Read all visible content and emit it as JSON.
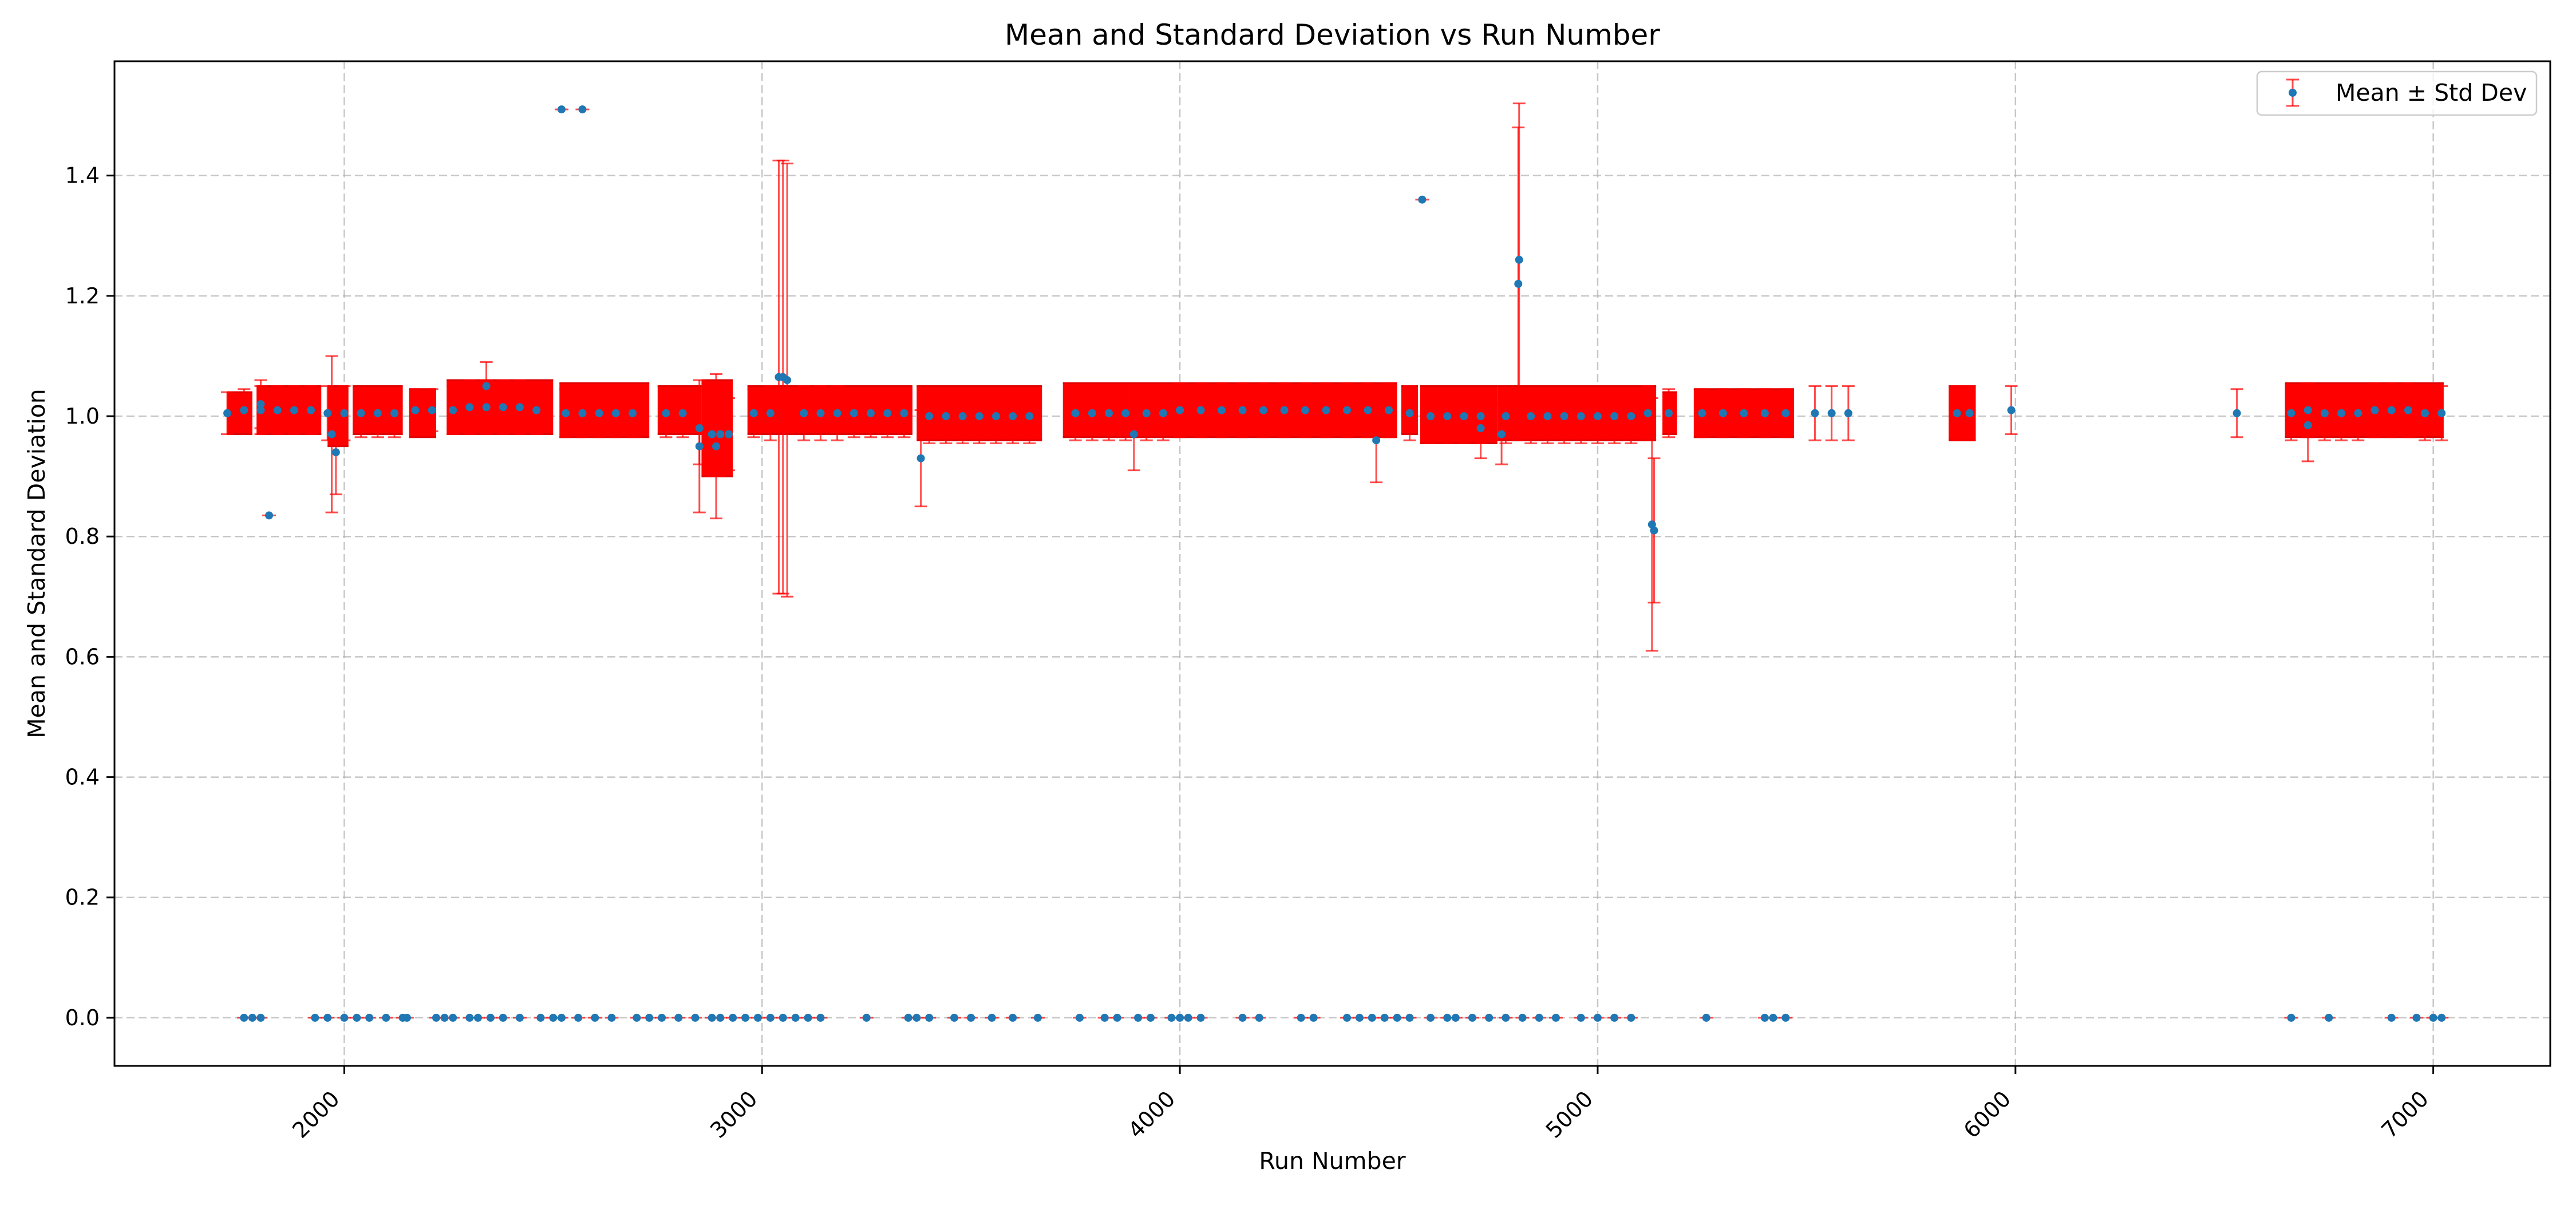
{
  "chart_data": {
    "type": "scatter",
    "title": "Mean and Standard Deviation vs Run Number",
    "xlabel": "Run Number",
    "ylabel": "Mean and Standard Deviation",
    "xlim": [
      1450,
      7280
    ],
    "ylim": [
      -0.08,
      1.59
    ],
    "x_ticks": [
      2000,
      3000,
      4000,
      5000,
      6000,
      7000
    ],
    "y_ticks": [
      0.0,
      0.2,
      0.4,
      0.6,
      0.8,
      1.0,
      1.2,
      1.4
    ],
    "x_tick_labels": [
      "2000",
      "3000",
      "4000",
      "5000",
      "6000",
      "7000"
    ],
    "y_tick_labels": [
      "0.0",
      "0.2",
      "0.4",
      "0.6",
      "0.8",
      "1.0",
      "1.2",
      "1.4"
    ],
    "grid": true,
    "legend": {
      "position": "top-right",
      "entries": [
        "Mean ± Std Dev"
      ]
    },
    "colors": {
      "marker": "#1f77b4",
      "errorbar": "#ff0000"
    },
    "dense_bands": [
      {
        "x_start": 1720,
        "x_end": 1780,
        "y_low": 0.97,
        "y_high": 1.04
      },
      {
        "x_start": 1790,
        "x_end": 1945,
        "y_low": 0.97,
        "y_high": 1.05
      },
      {
        "x_start": 1960,
        "x_end": 2010,
        "y_low": 0.95,
        "y_high": 1.05
      },
      {
        "x_start": 2020,
        "x_end": 2140,
        "y_low": 0.97,
        "y_high": 1.05
      },
      {
        "x_start": 2155,
        "x_end": 2220,
        "y_low": 0.965,
        "y_high": 1.045
      },
      {
        "x_start": 2245,
        "x_end": 2500,
        "y_low": 0.97,
        "y_high": 1.06
      },
      {
        "x_start": 2515,
        "x_end": 2730,
        "y_low": 0.965,
        "y_high": 1.055
      },
      {
        "x_start": 2750,
        "x_end": 2855,
        "y_low": 0.97,
        "y_high": 1.05
      },
      {
        "x_start": 2855,
        "x_end": 2930,
        "y_low": 0.9,
        "y_high": 1.06
      },
      {
        "x_start": 2965,
        "x_end": 3360,
        "y_low": 0.97,
        "y_high": 1.05
      },
      {
        "x_start": 3370,
        "x_end": 3670,
        "y_low": 0.96,
        "y_high": 1.05
      },
      {
        "x_start": 3720,
        "x_end": 3880,
        "y_low": 0.965,
        "y_high": 1.055
      },
      {
        "x_start": 3880,
        "x_end": 4520,
        "y_low": 0.965,
        "y_high": 1.055
      },
      {
        "x_start": 4530,
        "x_end": 4570,
        "y_low": 0.97,
        "y_high": 1.05
      },
      {
        "x_start": 4575,
        "x_end": 4760,
        "y_low": 0.955,
        "y_high": 1.05
      },
      {
        "x_start": 4760,
        "x_end": 5140,
        "y_low": 0.96,
        "y_high": 1.05
      },
      {
        "x_start": 5155,
        "x_end": 5190,
        "y_low": 0.97,
        "y_high": 1.04
      },
      {
        "x_start": 5230,
        "x_end": 5470,
        "y_low": 0.965,
        "y_high": 1.045
      },
      {
        "x_start": 5840,
        "x_end": 5905,
        "y_low": 0.96,
        "y_high": 1.05
      },
      {
        "x_start": 6645,
        "x_end": 7025,
        "y_low": 0.965,
        "y_high": 1.055
      }
    ],
    "series": [
      {
        "name": "Mean ± Std Dev",
        "x": [
          1720,
          1760,
          1800,
          1840,
          1880,
          1920,
          1960,
          2000,
          2040,
          2080,
          2120,
          2170,
          2210,
          2260,
          2300,
          2340,
          2380,
          2420,
          2460,
          2530,
          2570,
          2610,
          2650,
          2690,
          2770,
          2810,
          2850,
          2880,
          2900,
          2920,
          2980,
          3020,
          3060,
          3100,
          3140,
          3180,
          3220,
          3260,
          3300,
          3340,
          3400,
          3440,
          3480,
          3520,
          3560,
          3600,
          3640,
          3750,
          3790,
          3830,
          3870,
          3920,
          3960,
          4000,
          4050,
          4100,
          4150,
          4200,
          4250,
          4300,
          4350,
          4400,
          4450,
          4500,
          4550,
          4600,
          4640,
          4680,
          4720,
          4780,
          4840,
          4880,
          4920,
          4960,
          5000,
          5040,
          5080,
          5120,
          5170,
          5250,
          5300,
          5350,
          5400,
          5450,
          5860,
          5890,
          6660,
          6700,
          6740,
          6780,
          6820,
          6860,
          6900,
          6940,
          6980,
          7020,
          1800,
          1970,
          1980,
          2340,
          2850,
          2890,
          3040,
          3050,
          3380,
          3890,
          4470,
          4810,
          4812,
          5130,
          5135,
          5520,
          5560,
          5600,
          5990,
          6530,
          6700,
          4720,
          4770,
          2520,
          2570,
          4580,
          1820,
          1760,
          1780,
          1800,
          1930,
          1960,
          2000,
          2030,
          2060,
          2100,
          2140,
          2150,
          2220,
          2240,
          2260,
          2300,
          2320,
          2350,
          2380,
          2420,
          2470,
          2500,
          2520,
          2560,
          2600,
          2640,
          2700,
          2730,
          2760,
          2800,
          2840,
          2880,
          2900,
          2930,
          2960,
          2990,
          3020,
          3050,
          3080,
          3110,
          3140,
          3250,
          3350,
          3370,
          3400,
          3460,
          3500,
          3550,
          3600,
          3660,
          3760,
          3820,
          3850,
          3900,
          3930,
          3980,
          4000,
          4020,
          4050,
          4150,
          4190,
          4290,
          4320,
          4400,
          4430,
          4460,
          4490,
          4520,
          4550,
          4600,
          4640,
          4660,
          4700,
          4740,
          4780,
          4820,
          4860,
          4900,
          4960,
          5000,
          5040,
          5080,
          5260,
          5400,
          5420,
          5450,
          6660,
          6750,
          6900,
          6960,
          7000,
          7020
        ],
        "y": [
          1.005,
          1.01,
          1.01,
          1.01,
          1.01,
          1.01,
          1.005,
          1.005,
          1.005,
          1.005,
          1.005,
          1.01,
          1.01,
          1.01,
          1.015,
          1.015,
          1.015,
          1.015,
          1.01,
          1.005,
          1.005,
          1.005,
          1.005,
          1.005,
          1.005,
          1.005,
          0.98,
          0.97,
          0.97,
          0.97,
          1.005,
          1.005,
          1.06,
          1.005,
          1.005,
          1.005,
          1.005,
          1.005,
          1.005,
          1.005,
          1.0,
          1.0,
          1.0,
          1.0,
          1.0,
          1.0,
          1.0,
          1.005,
          1.005,
          1.005,
          1.005,
          1.005,
          1.005,
          1.01,
          1.01,
          1.01,
          1.01,
          1.01,
          1.01,
          1.01,
          1.01,
          1.01,
          1.01,
          1.01,
          1.005,
          1.0,
          1.0,
          1.0,
          1.0,
          1.0,
          1.0,
          1.0,
          1.0,
          1.0,
          1.0,
          1.0,
          1.0,
          1.005,
          1.005,
          1.005,
          1.005,
          1.005,
          1.005,
          1.005,
          1.005,
          1.005,
          1.005,
          1.01,
          1.005,
          1.005,
          1.005,
          1.01,
          1.01,
          1.01,
          1.005,
          1.005,
          1.02,
          0.97,
          0.94,
          1.05,
          0.95,
          0.95,
          1.065,
          1.065,
          0.93,
          0.97,
          0.96,
          1.22,
          1.26,
          0.82,
          0.81,
          1.005,
          1.005,
          1.005,
          1.01,
          1.005,
          0.985,
          0.98,
          0.97,
          1.51,
          1.51,
          1.36,
          0.835,
          0.0,
          0.0,
          0.0,
          0.0,
          0.0,
          0.0,
          0.0,
          0.0,
          0.0,
          0.0,
          0.0,
          0.0,
          0.0,
          0.0,
          0.0,
          0.0,
          0.0,
          0.0,
          0.0,
          0.0,
          0.0,
          0.0,
          0.0,
          0.0,
          0.0,
          0.0,
          0.0,
          0.0,
          0.0,
          0.0,
          0.0,
          0.0,
          0.0,
          0.0,
          0.0,
          0.0,
          0.0,
          0.0,
          0.0,
          0.0,
          0.0,
          0.0,
          0.0,
          0.0,
          0.0,
          0.0,
          0.0,
          0.0,
          0.0,
          0.0,
          0.0,
          0.0,
          0.0,
          0.0,
          0.0,
          0.0,
          0.0,
          0.0,
          0.0,
          0.0,
          0.0,
          0.0,
          0.0,
          0.0,
          0.0,
          0.0,
          0.0,
          0.0,
          0.0,
          0.0,
          0.0,
          0.0,
          0.0,
          0.0,
          0.0,
          0.0,
          0.0,
          0.0,
          0.0,
          0.0,
          0.0,
          0.0,
          0.0,
          0.0,
          0.0,
          0.0,
          0.0,
          0.0,
          0.0,
          0.0,
          0.0
        ],
        "yerr": [
          0.035,
          0.035,
          0.04,
          0.04,
          0.04,
          0.04,
          0.045,
          0.045,
          0.04,
          0.04,
          0.04,
          0.035,
          0.035,
          0.04,
          0.045,
          0.045,
          0.045,
          0.045,
          0.04,
          0.04,
          0.04,
          0.04,
          0.04,
          0.04,
          0.04,
          0.04,
          0.06,
          0.07,
          0.07,
          0.06,
          0.04,
          0.045,
          0.36,
          0.045,
          0.045,
          0.045,
          0.04,
          0.04,
          0.04,
          0.04,
          0.045,
          0.045,
          0.045,
          0.045,
          0.045,
          0.045,
          0.045,
          0.045,
          0.045,
          0.045,
          0.045,
          0.045,
          0.045,
          0.045,
          0.045,
          0.045,
          0.045,
          0.045,
          0.045,
          0.045,
          0.045,
          0.045,
          0.045,
          0.045,
          0.045,
          0.045,
          0.045,
          0.045,
          0.045,
          0.045,
          0.045,
          0.045,
          0.045,
          0.045,
          0.045,
          0.045,
          0.045,
          0.045,
          0.04,
          0.04,
          0.04,
          0.04,
          0.04,
          0.04,
          0.045,
          0.045,
          0.045,
          0.045,
          0.045,
          0.045,
          0.045,
          0.045,
          0.045,
          0.045,
          0.045,
          0.045,
          0.04,
          0.13,
          0.07,
          0.04,
          0.11,
          0.12,
          0.36,
          0.36,
          0.08,
          0.06,
          0.07,
          0.26,
          0.26,
          0.21,
          0.12,
          0.045,
          0.045,
          0.045,
          0.04,
          0.04,
          0.06,
          0.05,
          0.05,
          0.0,
          0.0,
          0.0,
          0.0,
          0.0,
          0.0,
          0.0,
          0.0,
          0.0,
          0.0,
          0.0,
          0.0,
          0.0,
          0.0,
          0.0,
          0.0,
          0.0,
          0.0,
          0.0,
          0.0,
          0.0,
          0.0,
          0.0,
          0.0,
          0.0,
          0.0,
          0.0,
          0.0,
          0.0,
          0.0,
          0.0,
          0.0,
          0.0,
          0.0,
          0.0,
          0.0,
          0.0,
          0.0,
          0.0,
          0.0,
          0.0,
          0.0,
          0.0,
          0.0,
          0.0,
          0.0,
          0.0,
          0.0,
          0.0,
          0.0,
          0.0,
          0.0,
          0.0,
          0.0,
          0.0,
          0.0,
          0.0,
          0.0,
          0.0,
          0.0,
          0.0,
          0.0,
          0.0,
          0.0,
          0.0,
          0.0,
          0.0,
          0.0,
          0.0,
          0.0,
          0.0,
          0.0,
          0.0,
          0.0,
          0.0,
          0.0,
          0.0,
          0.0,
          0.0,
          0.0,
          0.0,
          0.0,
          0.0,
          0.0,
          0.0,
          0.0,
          0.0,
          0.0,
          0.0,
          0.0,
          0.0,
          0.0,
          0.0,
          0.0,
          0.0
        ]
      }
    ]
  }
}
